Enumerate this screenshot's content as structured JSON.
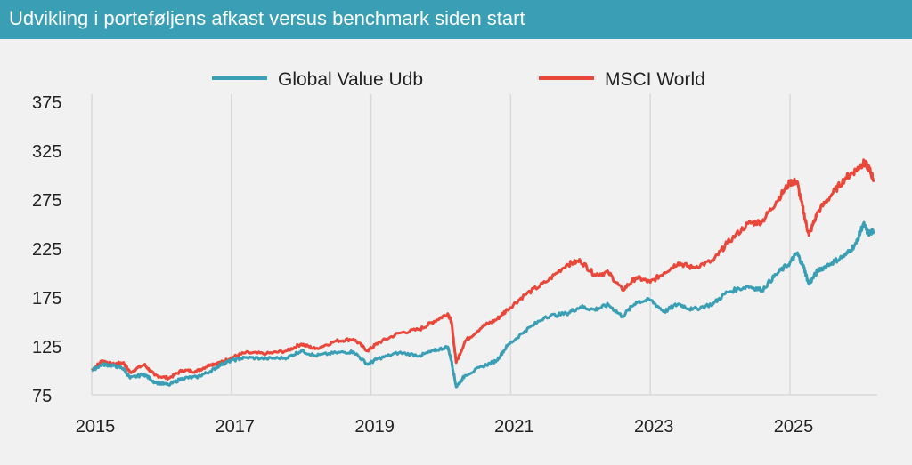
{
  "header": {
    "title": "Udvikling i porteføljens afkast versus benchmark siden start"
  },
  "colors": {
    "header_bg": "#3a9fb5",
    "series_global": "#3a9fb5",
    "series_msci": "#e8473a",
    "grid": "#d9d9d9",
    "background": "#f1f1f1"
  },
  "chart_data": {
    "type": "line",
    "title": "",
    "xlabel": "",
    "ylabel": "",
    "xlim": [
      2015.0,
      2026.25
    ],
    "ylim": [
      75,
      375
    ],
    "yticks": [
      75,
      125,
      175,
      225,
      275,
      325,
      375
    ],
    "xticks": [
      2015,
      2017,
      2019,
      2021,
      2023,
      2025
    ],
    "grid": "vertical",
    "legend": "top",
    "series": [
      {
        "name": "Global Value Udb",
        "color": "#3a9fb5",
        "points": [
          [
            2015.0,
            100
          ],
          [
            2015.15,
            106
          ],
          [
            2015.3,
            105
          ],
          [
            2015.45,
            102
          ],
          [
            2015.55,
            92
          ],
          [
            2015.75,
            96
          ],
          [
            2015.9,
            88
          ],
          [
            2016.1,
            85
          ],
          [
            2016.3,
            92
          ],
          [
            2016.5,
            93
          ],
          [
            2016.7,
            99
          ],
          [
            2016.85,
            106
          ],
          [
            2017.0,
            110
          ],
          [
            2017.2,
            113
          ],
          [
            2017.5,
            112
          ],
          [
            2017.8,
            113
          ],
          [
            2018.0,
            120
          ],
          [
            2018.2,
            115
          ],
          [
            2018.5,
            118
          ],
          [
            2018.75,
            119
          ],
          [
            2018.95,
            106
          ],
          [
            2019.1,
            112
          ],
          [
            2019.4,
            118
          ],
          [
            2019.7,
            115
          ],
          [
            2019.9,
            120
          ],
          [
            2020.1,
            124
          ],
          [
            2020.15,
            110
          ],
          [
            2020.22,
            83
          ],
          [
            2020.35,
            95
          ],
          [
            2020.6,
            104
          ],
          [
            2020.8,
            110
          ],
          [
            2020.95,
            125
          ],
          [
            2021.2,
            140
          ],
          [
            2021.5,
            155
          ],
          [
            2021.8,
            158
          ],
          [
            2022.0,
            165
          ],
          [
            2022.2,
            162
          ],
          [
            2022.4,
            167
          ],
          [
            2022.6,
            155
          ],
          [
            2022.8,
            170
          ],
          [
            2023.0,
            172
          ],
          [
            2023.2,
            160
          ],
          [
            2023.4,
            168
          ],
          [
            2023.6,
            162
          ],
          [
            2023.9,
            168
          ],
          [
            2024.1,
            180
          ],
          [
            2024.4,
            186
          ],
          [
            2024.6,
            182
          ],
          [
            2024.8,
            198
          ],
          [
            2025.0,
            210
          ],
          [
            2025.1,
            220
          ],
          [
            2025.2,
            205
          ],
          [
            2025.27,
            188
          ],
          [
            2025.4,
            202
          ],
          [
            2025.6,
            210
          ],
          [
            2025.8,
            218
          ],
          [
            2025.95,
            230
          ],
          [
            2026.05,
            250
          ],
          [
            2026.12,
            240
          ],
          [
            2026.2,
            242
          ]
        ]
      },
      {
        "name": "MSCI World",
        "color": "#e8473a",
        "points": [
          [
            2015.0,
            100
          ],
          [
            2015.15,
            110
          ],
          [
            2015.3,
            106
          ],
          [
            2015.45,
            108
          ],
          [
            2015.55,
            98
          ],
          [
            2015.75,
            106
          ],
          [
            2015.9,
            95
          ],
          [
            2016.1,
            92
          ],
          [
            2016.3,
            100
          ],
          [
            2016.5,
            99
          ],
          [
            2016.7,
            106
          ],
          [
            2016.85,
            108
          ],
          [
            2017.0,
            113
          ],
          [
            2017.2,
            118
          ],
          [
            2017.5,
            117
          ],
          [
            2017.8,
            120
          ],
          [
            2018.0,
            127
          ],
          [
            2018.2,
            122
          ],
          [
            2018.5,
            130
          ],
          [
            2018.75,
            132
          ],
          [
            2018.95,
            120
          ],
          [
            2019.1,
            128
          ],
          [
            2019.4,
            138
          ],
          [
            2019.7,
            142
          ],
          [
            2019.9,
            150
          ],
          [
            2020.1,
            158
          ],
          [
            2020.15,
            150
          ],
          [
            2020.22,
            108
          ],
          [
            2020.35,
            130
          ],
          [
            2020.6,
            145
          ],
          [
            2020.8,
            152
          ],
          [
            2020.95,
            162
          ],
          [
            2021.2,
            177
          ],
          [
            2021.5,
            190
          ],
          [
            2021.8,
            208
          ],
          [
            2022.0,
            212
          ],
          [
            2022.2,
            198
          ],
          [
            2022.4,
            200
          ],
          [
            2022.6,
            182
          ],
          [
            2022.8,
            195
          ],
          [
            2023.0,
            190
          ],
          [
            2023.2,
            200
          ],
          [
            2023.4,
            210
          ],
          [
            2023.6,
            205
          ],
          [
            2023.9,
            212
          ],
          [
            2024.1,
            230
          ],
          [
            2024.4,
            250
          ],
          [
            2024.6,
            252
          ],
          [
            2024.8,
            272
          ],
          [
            2025.0,
            292
          ],
          [
            2025.1,
            293
          ],
          [
            2025.2,
            260
          ],
          [
            2025.27,
            238
          ],
          [
            2025.4,
            262
          ],
          [
            2025.6,
            280
          ],
          [
            2025.8,
            297
          ],
          [
            2025.95,
            305
          ],
          [
            2026.05,
            312
          ],
          [
            2026.12,
            308
          ],
          [
            2026.2,
            295
          ]
        ]
      }
    ]
  }
}
